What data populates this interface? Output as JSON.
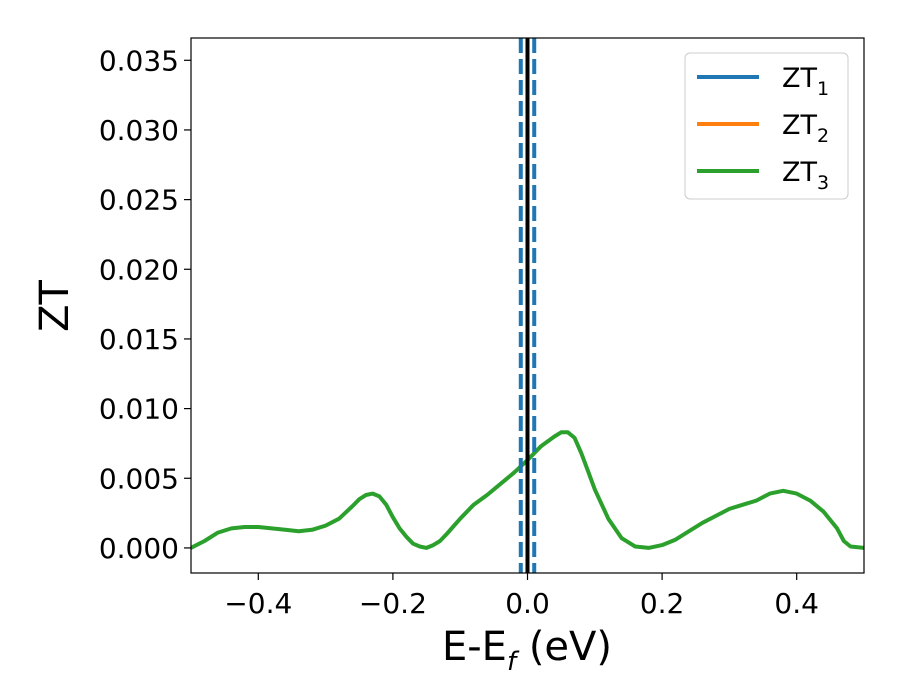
{
  "chart_data": {
    "type": "line",
    "xlabel": "E-E",
    "xlabel_sub": "f",
    "xlabel_suffix": " (eV)",
    "ylabel": "ZT",
    "xlim": [
      -0.5,
      0.5
    ],
    "ylim": [
      -0.0018,
      0.0366
    ],
    "xticks": [
      -0.4,
      -0.2,
      0.0,
      0.2,
      0.4
    ],
    "xtick_labels": [
      "−0.4",
      "−0.2",
      "0.0",
      "0.2",
      "0.4"
    ],
    "yticks": [
      0.0,
      0.005,
      0.01,
      0.015,
      0.02,
      0.025,
      0.03,
      0.035
    ],
    "ytick_labels": [
      "0.000",
      "0.005",
      "0.010",
      "0.015",
      "0.020",
      "0.025",
      "0.030",
      "0.035"
    ],
    "grid": false,
    "legend_position": "top-right",
    "series": [
      {
        "name": "ZT",
        "sub": "1",
        "color": "#1f77b4"
      },
      {
        "name": "ZT",
        "sub": "2",
        "color": "#ff7f0e"
      },
      {
        "name": "ZT",
        "sub": "3",
        "color": "#2ca02c",
        "x": [
          -0.5,
          -0.48,
          -0.46,
          -0.44,
          -0.42,
          -0.4,
          -0.38,
          -0.36,
          -0.34,
          -0.32,
          -0.3,
          -0.28,
          -0.26,
          -0.25,
          -0.24,
          -0.23,
          -0.22,
          -0.21,
          -0.2,
          -0.19,
          -0.18,
          -0.17,
          -0.16,
          -0.15,
          -0.14,
          -0.13,
          -0.12,
          -0.1,
          -0.08,
          -0.06,
          -0.04,
          -0.02,
          0.0,
          0.02,
          0.04,
          0.05,
          0.06,
          0.07,
          0.08,
          0.09,
          0.1,
          0.12,
          0.14,
          0.16,
          0.18,
          0.2,
          0.22,
          0.24,
          0.26,
          0.28,
          0.3,
          0.32,
          0.34,
          0.36,
          0.38,
          0.4,
          0.42,
          0.44,
          0.46,
          0.47,
          0.48,
          0.5
        ],
        "y": [
          0.0,
          0.0005,
          0.0011,
          0.0014,
          0.0015,
          0.0015,
          0.0014,
          0.0013,
          0.0012,
          0.0013,
          0.0016,
          0.0021,
          0.003,
          0.0035,
          0.0038,
          0.0039,
          0.0037,
          0.0031,
          0.0022,
          0.0014,
          0.0008,
          0.0003,
          0.0001,
          0.0,
          0.0002,
          0.0005,
          0.001,
          0.0021,
          0.0031,
          0.0038,
          0.0046,
          0.0054,
          0.0063,
          0.0073,
          0.008,
          0.0083,
          0.0083,
          0.0079,
          0.0068,
          0.0055,
          0.0042,
          0.0021,
          0.0007,
          0.0001,
          0.0,
          0.0002,
          0.0006,
          0.0012,
          0.0018,
          0.0023,
          0.0028,
          0.0031,
          0.0034,
          0.0039,
          0.0041,
          0.0039,
          0.0034,
          0.0026,
          0.0014,
          0.0005,
          0.0001,
          0.0
        ]
      }
    ],
    "vlines": [
      {
        "x": -0.01,
        "style": "dashed",
        "color": "#1f77b4"
      },
      {
        "x": 0.01,
        "style": "dashed",
        "color": "#1f77b4"
      },
      {
        "x": 0.0,
        "style": "solid",
        "color": "#000000"
      }
    ]
  }
}
